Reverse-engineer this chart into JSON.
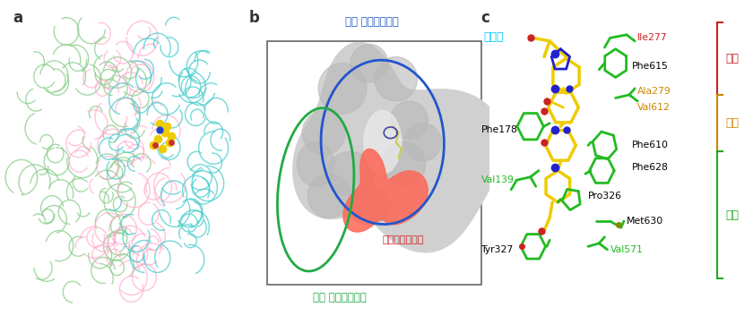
{
  "bg_color": "#ffffff",
  "panel_a_label": "a",
  "panel_b_label": "b",
  "panel_c_label": "c",
  "panel_b_top_label": "遠位 薬剤結合部位",
  "panel_b_bottom_label": "近位 薬剤結合部位",
  "panel_b_red_label": "陰害剤結合部位",
  "panel_b_blue_circle_color": "#2255cc",
  "panel_b_green_circle_color": "#22aa44",
  "panel_c_inhibitor_label": "陰害剤",
  "panel_c_inhibitor_color": "#00ccff",
  "bracket_upper_label": "上部",
  "bracket_upper_color": "#cc2222",
  "bracket_mid_label": "中部",
  "bracket_mid_color": "#cc8800",
  "bracket_lower_label": "下部",
  "bracket_lower_color": "#22aa22",
  "molecule_yellow": "#eecc00",
  "molecule_green": "#22bb22",
  "molecule_blue": "#2222cc",
  "molecule_red": "#cc2222",
  "green_protein": "#88cc88",
  "pink_protein": "#ffaacc",
  "cyan_protein": "#44cccc",
  "gray_surface": "#d0d0d0",
  "gray_surface_dark": "#b8b8b8"
}
